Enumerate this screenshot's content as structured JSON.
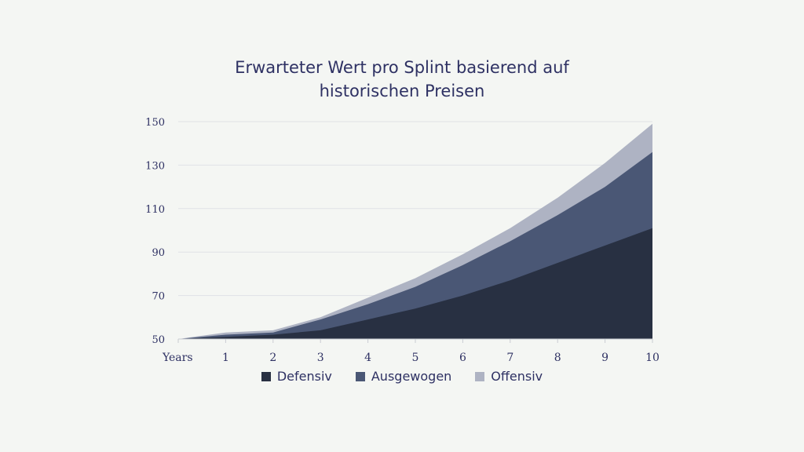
{
  "chart_data": {
    "type": "area",
    "stacked": false,
    "title_lines": [
      "Erwarteter Wert pro Splint basierend auf",
      "historischen Preisen"
    ],
    "x_tick_labels": [
      "Years",
      "1",
      "2",
      "3",
      "4",
      "5",
      "6",
      "7",
      "8",
      "9",
      "10"
    ],
    "x": [
      0,
      1,
      2,
      3,
      4,
      5,
      6,
      7,
      8,
      9,
      10
    ],
    "y_ticks": [
      50,
      70,
      90,
      110,
      130,
      150
    ],
    "ylim": [
      50,
      150
    ],
    "grid": true,
    "legend_position": "bottom",
    "series": [
      {
        "name": "Offensiv",
        "color": "#aeb3c3",
        "values": [
          50,
          53,
          54,
          60,
          69,
          78,
          89,
          101,
          115,
          131,
          149
        ]
      },
      {
        "name": "Ausgewogen",
        "color": "#4a5775",
        "values": [
          50,
          52,
          53,
          59,
          66,
          74,
          84,
          95,
          107,
          120,
          136
        ]
      },
      {
        "name": "Defensiv",
        "color": "#283042",
        "values": [
          50,
          51,
          52,
          54,
          59,
          64,
          70,
          77,
          85,
          93,
          101
        ]
      }
    ],
    "legend_order": [
      "Defensiv",
      "Ausgewogen",
      "Offensiv"
    ]
  }
}
